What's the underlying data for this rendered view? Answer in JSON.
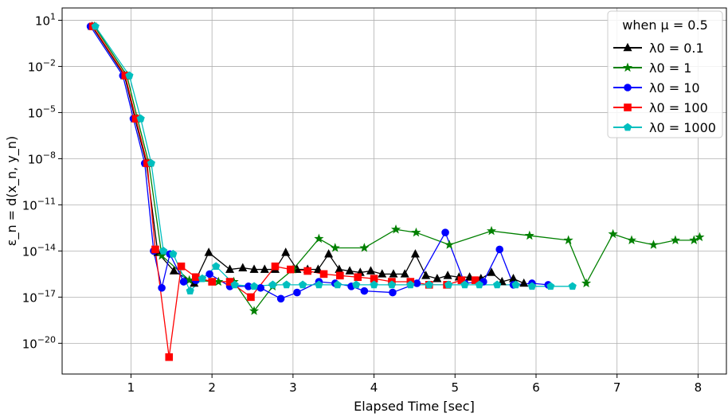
{
  "chart_data": {
    "type": "line",
    "xlabel": "Elapsed Time [sec]",
    "ylabel": "ε_n = d(x_n, y_n)",
    "xlim": [
      0.15,
      8.35
    ],
    "ylim_exp": [
      -22,
      1.8
    ],
    "yscale": "log",
    "grid": true,
    "x_ticks": [
      1,
      2,
      3,
      4,
      5,
      6,
      7,
      8
    ],
    "x_tick_labels": [
      "1",
      "2",
      "3",
      "4",
      "5",
      "6",
      "7",
      "8"
    ],
    "y_tick_exps": [
      1,
      -2,
      -5,
      -8,
      -11,
      -14,
      -17,
      -20
    ],
    "y_tick_labels": [
      "10",
      "10",
      "10",
      "10",
      "10",
      "10",
      "10",
      "10"
    ],
    "y_tick_sups": [
      "1",
      "−2",
      "−5",
      "−8",
      "−11",
      "−14",
      "−17",
      "−20"
    ],
    "legend": {
      "title": "when μ = 0.5",
      "placement": "top-right"
    },
    "series": [
      {
        "name": "λ0 = 0.1",
        "color": "#000000",
        "marker": "triangle",
        "x": [
          0.52,
          0.92,
          1.05,
          1.19,
          1.33,
          1.53,
          1.78,
          1.96,
          2.22,
          2.38,
          2.52,
          2.65,
          2.78,
          2.91,
          3.05,
          3.18,
          3.31,
          3.44,
          3.57,
          3.7,
          3.83,
          3.96,
          4.1,
          4.24,
          4.38,
          4.51,
          4.64,
          4.78,
          4.91,
          5.05,
          5.18,
          5.32,
          5.45,
          5.58,
          5.72,
          5.85
        ],
        "y_exp": [
          0.6,
          -2.6,
          -5.4,
          -8.3,
          -14.1,
          -15.3,
          -16.1,
          -14.1,
          -15.2,
          -15.1,
          -15.2,
          -15.2,
          -15.2,
          -14.1,
          -15.2,
          -15.2,
          -15.2,
          -14.2,
          -15.2,
          -15.3,
          -15.4,
          -15.3,
          -15.5,
          -15.5,
          -15.5,
          -14.2,
          -15.6,
          -15.8,
          -15.6,
          -15.7,
          -15.7,
          -15.8,
          -15.4,
          -16.0,
          -15.8,
          -16.1
        ]
      },
      {
        "name": "λ0 = 1",
        "color": "#008000",
        "marker": "star",
        "x": [
          0.55,
          0.95,
          1.08,
          1.22,
          1.38,
          1.72,
          2.08,
          2.27,
          2.52,
          2.75,
          3.0,
          3.32,
          3.52,
          3.88,
          4.27,
          4.52,
          4.93,
          5.45,
          5.92,
          6.4,
          6.62,
          6.95,
          7.18,
          7.45,
          7.72,
          7.95,
          8.02
        ],
        "y_exp": [
          0.6,
          -2.6,
          -5.4,
          -8.3,
          -14.3,
          -15.9,
          -16.0,
          -16.0,
          -17.9,
          -16.3,
          -15.2,
          -13.2,
          -13.8,
          -13.8,
          -12.6,
          -12.8,
          -13.6,
          -12.7,
          -13.0,
          -13.3,
          -16.1,
          -12.9,
          -13.3,
          -13.6,
          -13.3,
          -13.3,
          -13.1
        ]
      },
      {
        "name": "λ0 = 10",
        "color": "#0000ff",
        "marker": "circle",
        "x": [
          0.5,
          0.9,
          1.03,
          1.17,
          1.28,
          1.38,
          1.48,
          1.65,
          1.8,
          1.97,
          2.22,
          2.45,
          2.6,
          2.85,
          3.05,
          3.32,
          3.52,
          3.72,
          3.88,
          4.23,
          4.53,
          4.88,
          5.12,
          5.35,
          5.55,
          5.72,
          5.95,
          6.15
        ],
        "y_exp": [
          0.6,
          -2.6,
          -5.4,
          -8.3,
          -14.0,
          -16.4,
          -14.2,
          -16.0,
          -15.9,
          -15.5,
          -16.3,
          -16.3,
          -16.4,
          -17.1,
          -16.7,
          -16.0,
          -16.1,
          -16.3,
          -16.6,
          -16.7,
          -16.1,
          -12.8,
          -16.1,
          -16.0,
          -13.9,
          -16.2,
          -16.1,
          -16.2
        ]
      },
      {
        "name": "λ0 = 100",
        "color": "#ff0000",
        "marker": "square",
        "x": [
          0.53,
          0.93,
          1.06,
          1.2,
          1.3,
          1.47,
          1.62,
          1.8,
          2.0,
          2.22,
          2.48,
          2.78,
          2.97,
          3.18,
          3.38,
          3.58,
          3.8,
          4.0,
          4.22,
          4.45,
          4.68,
          4.9,
          5.08,
          5.25
        ],
        "y_exp": [
          0.6,
          -2.6,
          -5.4,
          -8.3,
          -13.9,
          -20.9,
          -15.0,
          -15.7,
          -16.0,
          -16.0,
          -17.0,
          -15.0,
          -15.2,
          -15.3,
          -15.5,
          -15.6,
          -15.7,
          -15.8,
          -16.0,
          -16.0,
          -16.2,
          -16.2,
          -15.9,
          -15.9
        ]
      },
      {
        "name": "λ0 = 1000",
        "color": "#00bfbf",
        "marker": "pentagon",
        "x": [
          0.56,
          0.98,
          1.12,
          1.25,
          1.4,
          1.52,
          1.73,
          1.88,
          2.05,
          2.28,
          2.52,
          2.75,
          2.92,
          3.12,
          3.32,
          3.55,
          3.78,
          4.0,
          4.22,
          4.45,
          4.68,
          4.92,
          5.12,
          5.3,
          5.52,
          5.75,
          5.95,
          6.18,
          6.45
        ],
        "y_exp": [
          0.6,
          -2.6,
          -5.4,
          -8.3,
          -14.0,
          -14.2,
          -16.6,
          -15.8,
          -15.0,
          -16.2,
          -16.3,
          -16.2,
          -16.2,
          -16.2,
          -16.2,
          -16.2,
          -16.2,
          -16.2,
          -16.2,
          -16.2,
          -16.2,
          -16.2,
          -16.2,
          -16.2,
          -16.2,
          -16.2,
          -16.3,
          -16.3,
          -16.3
        ]
      }
    ]
  }
}
